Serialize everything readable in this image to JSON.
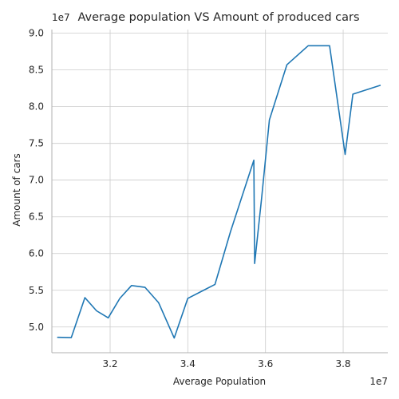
{
  "chart_data": {
    "type": "line",
    "title": "Average population VS Amount of produced cars",
    "xlabel": "Average Population",
    "ylabel": "Amount of cars",
    "x_offset_label": "1e7",
    "y_offset_label": "1e7",
    "xlim": [
      3.05,
      3.915
    ],
    "ylim": [
      4.65,
      9.05
    ],
    "xticks": [
      3.2,
      3.4,
      3.6,
      3.8
    ],
    "xtick_labels": [
      "3.2",
      "3.4",
      "3.6",
      "3.8"
    ],
    "yticks": [
      5.0,
      5.5,
      6.0,
      6.5,
      7.0,
      7.5,
      8.0,
      8.5,
      9.0
    ],
    "ytick_labels": [
      "5.0",
      "5.5",
      "6.0",
      "6.5",
      "7.0",
      "7.5",
      "8.0",
      "8.5",
      "9.0"
    ],
    "grid": true,
    "series": [
      {
        "color": "#1f77b4",
        "points": [
          [
            3.065,
            4.86
          ],
          [
            3.1,
            4.855
          ],
          [
            3.135,
            5.4
          ],
          [
            3.165,
            5.22
          ],
          [
            3.195,
            5.125
          ],
          [
            3.225,
            5.39
          ],
          [
            3.255,
            5.565
          ],
          [
            3.29,
            5.54
          ],
          [
            3.325,
            5.33
          ],
          [
            3.365,
            4.85
          ],
          [
            3.4,
            5.39
          ],
          [
            3.47,
            5.58
          ],
          [
            3.51,
            6.3
          ],
          [
            3.57,
            7.27
          ],
          [
            3.572,
            5.865
          ],
          [
            3.59,
            6.75
          ],
          [
            3.61,
            7.82
          ],
          [
            3.655,
            8.57
          ],
          [
            3.71,
            8.83
          ],
          [
            3.765,
            8.83
          ],
          [
            3.805,
            7.35
          ],
          [
            3.825,
            8.17
          ],
          [
            3.895,
            8.29
          ]
        ]
      }
    ]
  }
}
